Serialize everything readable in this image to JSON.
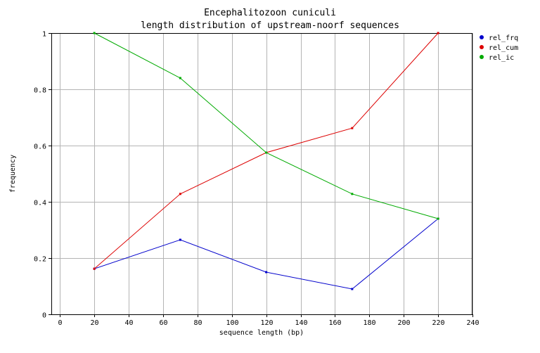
{
  "chart_data": {
    "type": "line",
    "title": [
      "Encephalitozoon cuniculi",
      "length distribution of upstream-noorf sequences"
    ],
    "xlabel": "sequence length (bp)",
    "ylabel": "frequency",
    "xlim": [
      -5,
      240
    ],
    "ylim": [
      0,
      1
    ],
    "x_ticks": [
      0,
      20,
      40,
      60,
      80,
      100,
      120,
      140,
      160,
      180,
      200,
      220,
      240
    ],
    "y_ticks": [
      0,
      0.2,
      0.4,
      0.6,
      0.8,
      1
    ],
    "y_tick_labels": [
      "0",
      "0.2",
      "0.4",
      "0.6",
      "0.8",
      "1"
    ],
    "grid": true,
    "legend_position": "top-right",
    "series": [
      {
        "name": "rel_frq",
        "color": "#0000cc",
        "x": [
          20,
          70,
          120,
          170,
          220
        ],
        "y": [
          0.162,
          0.265,
          0.15,
          0.09,
          0.34
        ]
      },
      {
        "name": "rel_cum",
        "color": "#dd0000",
        "x": [
          20,
          70,
          120,
          170,
          220
        ],
        "y": [
          0.162,
          0.428,
          0.575,
          0.662,
          1.0
        ]
      },
      {
        "name": "rel_ic",
        "color": "#00aa00",
        "x": [
          20,
          70,
          120,
          170,
          220
        ],
        "y": [
          1.0,
          0.84,
          0.575,
          0.428,
          0.34
        ]
      }
    ]
  }
}
